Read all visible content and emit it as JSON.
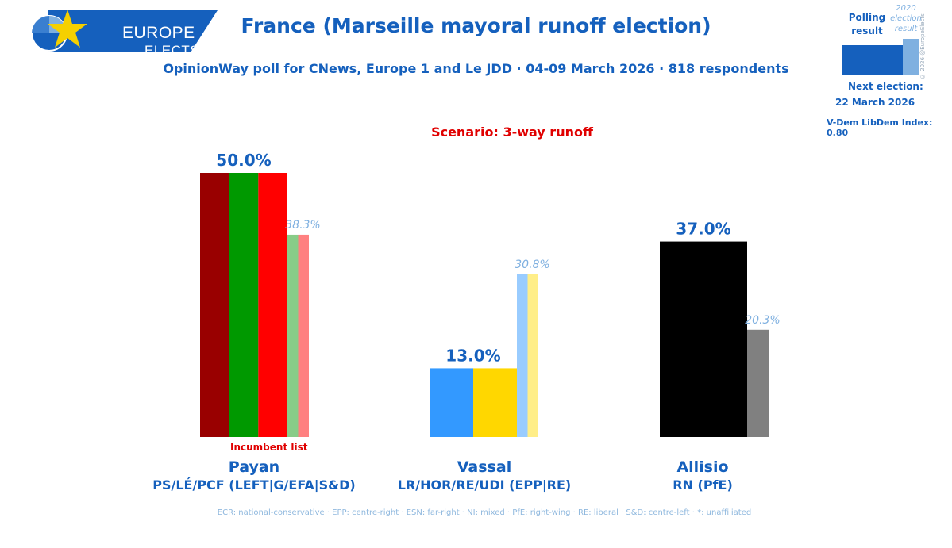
{
  "header": {
    "logo_line1": "EUROPE",
    "logo_line2": "ELECTS",
    "title": "France (Marseille mayoral runoff election)",
    "subtitle": "OpinionWay poll for CNews, Europe 1 and Le JDD · 04-09 March 2026 · 818 respondents"
  },
  "legend": {
    "polling_label": "Polling result",
    "prev_label": "2020 election result",
    "copyright": "© 2026 @EuropeElects",
    "next_election_label": "Next election:",
    "next_election_date": "22 March 2026",
    "vdem": "V-Dem LibDem Index: 0.80"
  },
  "colors": {
    "brand_blue": "#1560bd",
    "accent_red": "#e00000",
    "logo_star": "#f5d000"
  },
  "incumbent_note": "Incumbent list",
  "footer": "ECR: national-conservative · EPP: centre-right · ESN: far-right · NI: mixed · PfE: right-wing · RE: liberal · S&D: centre-left · *: unaffiliated",
  "chart_data": {
    "type": "bar",
    "scenario": "Scenario: 3-way runoff",
    "categories": [
      "Payan",
      "Vassal",
      "Allisio"
    ],
    "parties": [
      "PS/LÉ/PCF (LEFT|G/EFA|S&D)",
      "LR/HOR/RE/UDI (EPP|RE)",
      "RN (PfE)"
    ],
    "series": [
      {
        "name": "Polling result",
        "values": [
          50.0,
          13.0,
          37.0
        ],
        "labels": [
          "50.0%",
          "13.0%",
          "37.0%"
        ]
      },
      {
        "name": "2020 election result",
        "values": [
          38.3,
          30.8,
          20.3
        ],
        "labels": [
          "38.3%",
          "30.8%",
          "20.3%"
        ]
      }
    ],
    "poll_stripe_colors": [
      [
        "#990000",
        "#009900",
        "#ff0000"
      ],
      [
        "#3399ff",
        "#ffd700"
      ],
      [
        "#000000"
      ]
    ],
    "prev_stripe_colors": [
      [
        "#88cc88",
        "#ff8080"
      ],
      [
        "#99ccff",
        "#ffee88"
      ],
      [
        "#808080"
      ]
    ],
    "ylim": [
      0,
      50
    ]
  }
}
